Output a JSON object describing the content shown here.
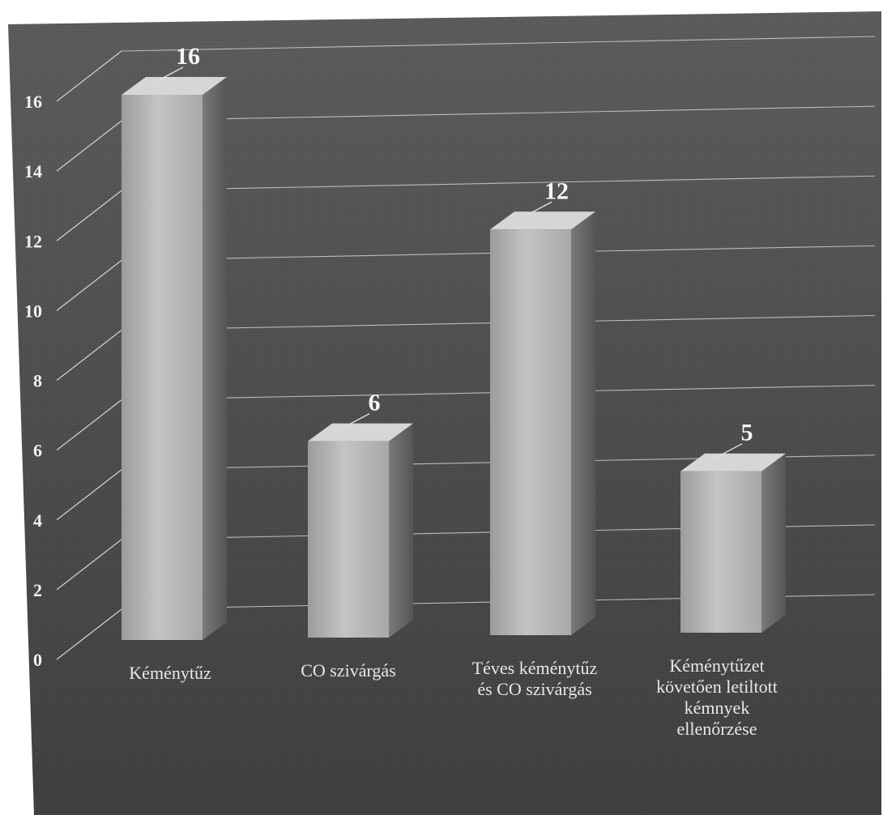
{
  "chart_data": {
    "type": "bar",
    "categories": [
      "Kéménytűz",
      "CO szivárgás",
      "Téves kéménytűz és CO szivárgás",
      "Kéménytűzet követően letiltott kémnyek ellenőrzése"
    ],
    "category_lines": [
      [
        "Kéménytűz"
      ],
      [
        "CO szivárgás"
      ],
      [
        "Téves kéménytűz",
        "és CO szivárgás"
      ],
      [
        "Kéménytűzet",
        "követően letiltott",
        "kémnyek",
        "ellenőrzése"
      ]
    ],
    "values": [
      16,
      6,
      12,
      5
    ],
    "data_labels": [
      "16",
      "6",
      "12",
      "5"
    ],
    "ylim": [
      0,
      16
    ],
    "yticks": [
      "0",
      "2",
      "4",
      "6",
      "8",
      "10",
      "12",
      "14",
      "16"
    ],
    "grid": true,
    "legend": "none",
    "title": "",
    "xlabel": "",
    "ylabel": "",
    "colors": {
      "background": "#545454",
      "bar_front": "#c0c0c0",
      "bar_side": "#6c6c6c",
      "bar_top": "#d6d6d6",
      "grid": "#cfcfcf",
      "text": "#f2f2f2"
    }
  }
}
